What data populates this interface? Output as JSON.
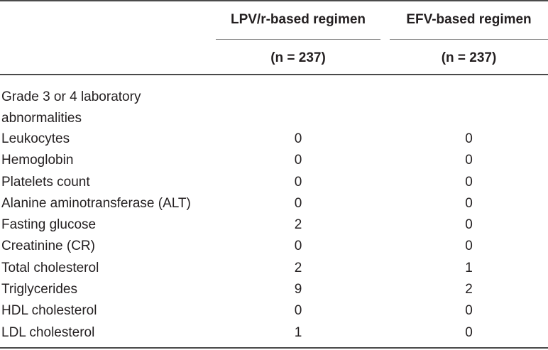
{
  "header": {
    "col1_title": "LPV/r-based regimen",
    "col2_title": "EFV-based regimen",
    "col1_n": "(n = 237)",
    "col2_n": "(n = 237)"
  },
  "section_label": "Grade 3 or 4 laboratory abnormalities",
  "rows": [
    {
      "label": "Leukocytes",
      "lpv": "0",
      "efv": "0"
    },
    {
      "label": "Hemoglobin",
      "lpv": "0",
      "efv": "0"
    },
    {
      "label": "Platelets count",
      "lpv": "0",
      "efv": "0"
    },
    {
      "label": "Alanine aminotransferase (ALT)",
      "lpv": "0",
      "efv": "0"
    },
    {
      "label": "Fasting glucose",
      "lpv": "2",
      "efv": "0"
    },
    {
      "label": "Creatinine (CR)",
      "lpv": "0",
      "efv": "0"
    },
    {
      "label": "Total cholesterol",
      "lpv": "2",
      "efv": "1"
    },
    {
      "label": "Triglycerides",
      "lpv": "9",
      "efv": "2"
    },
    {
      "label": "HDL cholesterol",
      "lpv": "0",
      "efv": "0"
    },
    {
      "label": "LDL cholesterol",
      "lpv": "1",
      "efv": "0"
    }
  ]
}
